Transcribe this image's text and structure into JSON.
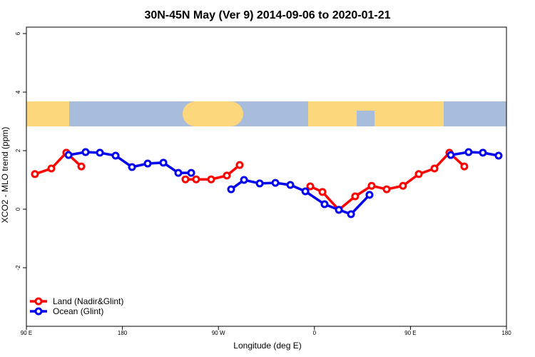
{
  "chart_data": {
    "type": "line",
    "title": "30N-45N May (Ver 9)   2014-09-06 to 2020-01-21",
    "x_label": "Longitude (deg E)",
    "y_label": "XCO2 - MLO trend (ppm)",
    "xlim": [
      90,
      540
    ],
    "xticks": [
      {
        "value": 90,
        "label": "90 E"
      },
      {
        "value": 180,
        "label": "180"
      },
      {
        "value": 270,
        "label": "90 W"
      },
      {
        "value": 360,
        "label": "0"
      },
      {
        "value": 450,
        "label": "90 E"
      },
      {
        "value": 540,
        "label": "180"
      }
    ],
    "ylim": [
      -4,
      6.22
    ],
    "yticks": [
      -2,
      0,
      2,
      4,
      6
    ],
    "legend": "bottom-left",
    "series": [
      {
        "name": "Land (Nadir&Glint)",
        "color": "#ff0000",
        "x": [
          98.0,
          113.4,
          127.4,
          141.5,
          190,
          239.1,
          249.1,
          263.2,
          277.9,
          289.9,
          320,
          356.1,
          367.5,
          382.9,
          398.2,
          413.6,
          427.7,
          443.0,
          457.8,
          472.5,
          486.5,
          500.5
        ],
        "values": [
          1.2,
          1.39,
          1.93,
          1.46,
          null,
          1.02,
          1.02,
          1.02,
          1.15,
          1.51,
          null,
          0.78,
          0.59,
          -0.02,
          0.44,
          0.8,
          0.68,
          0.8,
          1.2,
          1.39,
          1.93,
          1.46
        ]
      },
      {
        "name": "Ocean (Glint)",
        "color": "#0000ee",
        "x": [
          129.5,
          145.5,
          158.9,
          173.6,
          189.0,
          203.7,
          218.4,
          232.4,
          244.5,
          260,
          281.9,
          294.0,
          308.7,
          323.4,
          337.4,
          351.5,
          369.5,
          382.9,
          394.3,
          411.6,
          450,
          487.8,
          504.5,
          517.9,
          532.6
        ],
        "values": [
          1.85,
          1.95,
          1.93,
          1.83,
          1.44,
          1.56,
          1.59,
          1.24,
          1.24,
          null,
          0.68,
          1.0,
          0.88,
          0.9,
          0.83,
          0.61,
          0.17,
          -0.02,
          -0.17,
          0.49,
          null,
          1.85,
          1.95,
          1.93,
          1.83
        ]
      }
    ]
  }
}
